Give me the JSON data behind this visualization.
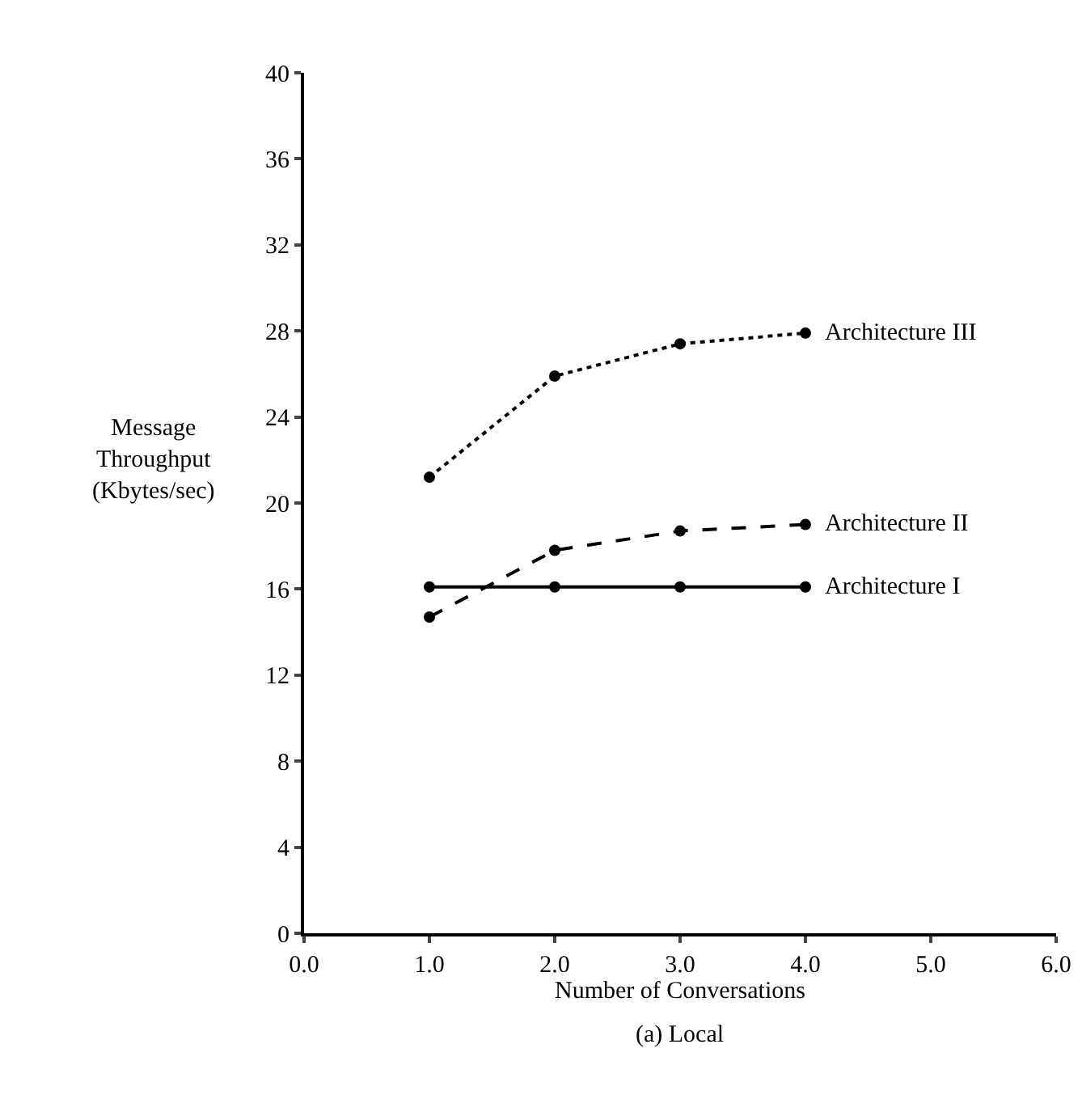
{
  "chart_data": {
    "type": "line",
    "title": "(a) Local",
    "xlabel": "Number of Conversations",
    "ylabel": "Message\nThroughput\n(Kbytes/sec)",
    "x": [
      1.0,
      2.0,
      3.0,
      4.0
    ],
    "series": [
      {
        "name": "Architecture III",
        "color": "#000000",
        "line_style": "dotted",
        "values": [
          21.2,
          25.9,
          27.4,
          27.9
        ]
      },
      {
        "name": "Architecture II",
        "color": "#000000",
        "line_style": "dashed",
        "values": [
          14.7,
          17.8,
          18.7,
          19.0
        ]
      },
      {
        "name": "Architecture I",
        "color": "#000000",
        "line_style": "solid",
        "values": [
          16.1,
          16.1,
          16.1,
          16.1
        ]
      }
    ],
    "xlim": [
      0,
      6
    ],
    "xticks": [
      {
        "value": 0,
        "label": "0.0"
      },
      {
        "value": 1,
        "label": "1.0"
      },
      {
        "value": 2,
        "label": "2.0"
      },
      {
        "value": 3,
        "label": "3.0"
      },
      {
        "value": 4,
        "label": "4.0"
      },
      {
        "value": 5,
        "label": "5.0"
      },
      {
        "value": 6,
        "label": "6.0"
      }
    ],
    "ylim": [
      0,
      40
    ],
    "yticks": [
      0,
      4,
      8,
      12,
      16,
      20,
      24,
      28,
      32,
      36,
      40
    ],
    "grid": false,
    "legend": false,
    "marker": "circle"
  }
}
